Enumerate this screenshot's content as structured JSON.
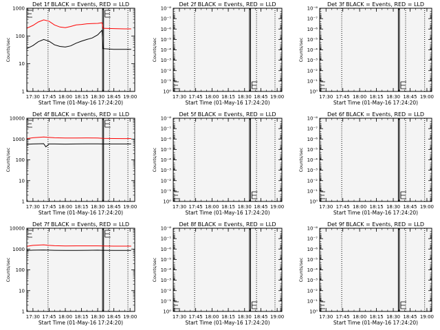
{
  "figure": {
    "background": "#ffffff",
    "foreground": "#000000",
    "panel_background": "#f4f4f4",
    "event_color": "#000000",
    "lld_color": "#ff0000"
  },
  "chart_data": [
    {
      "type": "line",
      "title": "Det 1f BLACK = Events, RED = LLD",
      "xlabel": "Start Time (01-May-16 17:24:20)",
      "ylabel": "Counts/sec",
      "x_ticks": [
        "17:30",
        "17:45",
        "18:00",
        "18:15",
        "18:30",
        "18:45",
        "19:00"
      ],
      "x_range": [
        "17:24:20",
        "19:04:20"
      ],
      "y_scale": "log",
      "y_range": [
        1,
        1000
      ],
      "y_ticks": [
        "1",
        "10",
        "100",
        "1000"
      ],
      "dotted_vlines": [
        "17:44:00",
        "18:41:00",
        "18:58:00"
      ],
      "solid_vlines": [
        "18:34:30",
        "18:35:30"
      ],
      "series": [
        {
          "color": "red",
          "x": [
            "17:24:20",
            "17:30",
            "17:35",
            "17:40",
            "17:45",
            "17:50",
            "17:55",
            "18:00",
            "18:05",
            "18:10",
            "18:15",
            "18:20",
            "18:25",
            "18:30",
            "18:34",
            "18:35",
            "18:45",
            "18:55",
            "19:01"
          ],
          "values": [
            190,
            240,
            320,
            380,
            340,
            250,
            210,
            200,
            220,
            250,
            260,
            275,
            280,
            285,
            300,
            190,
            185,
            180,
            180
          ]
        },
        {
          "color": "black",
          "x": [
            "17:24:20",
            "17:30",
            "17:35",
            "17:40",
            "17:45",
            "17:50",
            "17:55",
            "18:00",
            "18:05",
            "18:10",
            "18:15",
            "18:20",
            "18:25",
            "18:30",
            "18:34",
            "18:35",
            "18:45",
            "18:55",
            "19:01"
          ],
          "values": [
            35,
            45,
            62,
            75,
            65,
            48,
            42,
            40,
            44,
            55,
            65,
            75,
            85,
            110,
            160,
            35,
            33,
            33,
            33
          ]
        }
      ]
    },
    {
      "type": "line",
      "title": "Det 2f BLACK = Events, RED = LLD",
      "xlabel": "Start Time (01-May-16 17:24:20)",
      "ylabel": "Counts/sec",
      "x_ticks": [
        "17:30",
        "17:45",
        "18:00",
        "18:15",
        "18:30",
        "18:45",
        "19:00"
      ],
      "x_range": [
        "17:24:20",
        "19:04:20"
      ],
      "y_scale": "log",
      "y_range": [
        1,
        1e-08
      ],
      "y_ticks": [
        "10⁰",
        "10⁻¹",
        "10⁻²",
        "10⁻³",
        "10⁻⁴",
        "10⁻⁵",
        "10⁻⁶",
        "10⁻⁷",
        "10⁻⁸"
      ],
      "dotted_vlines": [
        "17:44:00",
        "18:41:00",
        "18:58:00"
      ],
      "solid_vlines": [
        "18:34:30",
        "18:35:30"
      ],
      "series": []
    },
    {
      "type": "line",
      "title": "Det 3f BLACK = Events, RED = LLD",
      "xlabel": "Start Time (01-May-16 17:24:20)",
      "ylabel": "Counts/sec",
      "x_ticks": [
        "17:30",
        "17:45",
        "18:00",
        "18:15",
        "18:30",
        "18:45",
        "19:00"
      ],
      "x_range": [
        "17:24:20",
        "19:04:20"
      ],
      "y_scale": "log",
      "y_range": [
        1,
        1e-08
      ],
      "y_ticks": [
        "10⁰",
        "10⁻¹",
        "10⁻²",
        "10⁻³",
        "10⁻⁴",
        "10⁻⁵",
        "10⁻⁶",
        "10⁻⁷",
        "10⁻⁸"
      ],
      "dotted_vlines": [
        "17:44:00",
        "18:41:00",
        "18:58:00"
      ],
      "solid_vlines": [
        "18:34:30",
        "18:35:30"
      ],
      "series": []
    },
    {
      "type": "line",
      "title": "Det 4f BLACK = Events, RED = LLD",
      "xlabel": "Start Time (01-May-16 17:24:20)",
      "ylabel": "Counts/sec",
      "x_ticks": [
        "17:30",
        "17:45",
        "18:00",
        "18:15",
        "18:30",
        "18:45",
        "19:00"
      ],
      "x_range": [
        "17:24:20",
        "19:04:20"
      ],
      "y_scale": "log",
      "y_range": [
        1,
        10000
      ],
      "y_ticks": [
        "1",
        "10",
        "100",
        "1000",
        "10000"
      ],
      "dotted_vlines": [
        "17:44:00",
        "18:41:00",
        "18:58:00"
      ],
      "solid_vlines": [
        "18:34:30",
        "18:35:30"
      ],
      "series": [
        {
          "color": "red",
          "x": [
            "17:24:20",
            "17:30",
            "17:40",
            "17:45",
            "17:50",
            "18:00",
            "18:10",
            "18:20",
            "18:30",
            "18:35",
            "18:45",
            "18:55",
            "19:01"
          ],
          "values": [
            1050,
            1150,
            1250,
            1200,
            1150,
            1120,
            1120,
            1130,
            1120,
            1080,
            1060,
            1050,
            1060
          ]
        },
        {
          "color": "black",
          "x": [
            "17:24:20",
            "17:30",
            "17:40",
            "17:42",
            "17:45",
            "17:50",
            "18:00",
            "18:10",
            "18:20",
            "18:30",
            "18:35",
            "18:45",
            "18:55",
            "19:01"
          ],
          "values": [
            560,
            580,
            600,
            420,
            580,
            580,
            570,
            580,
            590,
            590,
            580,
            580,
            580,
            580
          ]
        }
      ]
    },
    {
      "type": "line",
      "title": "Det 5f BLACK = Events, RED = LLD",
      "xlabel": "Start Time (01-May-16 17:24:20)",
      "ylabel": "Counts/sec",
      "x_ticks": [
        "17:30",
        "17:45",
        "18:00",
        "18:15",
        "18:30",
        "18:45",
        "19:00"
      ],
      "x_range": [
        "17:24:20",
        "19:04:20"
      ],
      "y_scale": "log",
      "y_range": [
        1,
        1e-08
      ],
      "y_ticks": [
        "10⁰",
        "10⁻¹",
        "10⁻²",
        "10⁻³",
        "10⁻⁴",
        "10⁻⁵",
        "10⁻⁶",
        "10⁻⁷",
        "10⁻⁸"
      ],
      "dotted_vlines": [
        "17:44:00",
        "18:41:00",
        "18:58:00"
      ],
      "solid_vlines": [
        "18:34:30",
        "18:35:30"
      ],
      "series": []
    },
    {
      "type": "line",
      "title": "Det 6f BLACK = Events, RED = LLD",
      "xlabel": "Start Time (01-May-16 17:24:20)",
      "ylabel": "Counts/sec",
      "x_ticks": [
        "17:30",
        "17:45",
        "18:00",
        "18:15",
        "18:30",
        "18:45",
        "19:00"
      ],
      "x_range": [
        "17:24:20",
        "19:04:20"
      ],
      "y_scale": "log",
      "y_range": [
        1,
        1e-08
      ],
      "y_ticks": [
        "10⁰",
        "10⁻¹",
        "10⁻²",
        "10⁻³",
        "10⁻⁴",
        "10⁻⁵",
        "10⁻⁶",
        "10⁻⁷",
        "10⁻⁸"
      ],
      "dotted_vlines": [
        "17:44:00",
        "18:41:00",
        "18:58:00"
      ],
      "solid_vlines": [
        "18:34:30",
        "18:35:30"
      ],
      "series": []
    },
    {
      "type": "line",
      "title": "Det 7f BLACK = Events, RED = LLD",
      "xlabel": "Start Time (01-May-16 17:24:20)",
      "ylabel": "Counts/sec",
      "x_ticks": [
        "17:30",
        "17:45",
        "18:00",
        "18:15",
        "18:30",
        "18:45",
        "19:00"
      ],
      "x_range": [
        "17:24:20",
        "19:04:20"
      ],
      "y_scale": "log",
      "y_range": [
        1,
        10000
      ],
      "y_ticks": [
        "1",
        "10",
        "100",
        "1000",
        "10000"
      ],
      "dotted_vlines": [
        "17:44:00",
        "18:41:00",
        "18:58:00"
      ],
      "solid_vlines": [
        "18:34:30",
        "18:35:30"
      ],
      "series": [
        {
          "color": "red",
          "x": [
            "17:24:20",
            "17:30",
            "17:40",
            "17:45",
            "17:50",
            "18:00",
            "18:10",
            "18:20",
            "18:30",
            "18:35",
            "18:45",
            "18:55",
            "19:01"
          ],
          "values": [
            1350,
            1500,
            1600,
            1500,
            1450,
            1400,
            1420,
            1430,
            1430,
            1400,
            1380,
            1380,
            1380
          ]
        },
        {
          "color": "black",
          "x": [
            "17:24:20",
            "17:30",
            "17:40",
            "17:45",
            "17:50",
            "18:00",
            "18:10",
            "18:20",
            "18:30",
            "18:35",
            "18:45",
            "18:55",
            "19:01"
          ],
          "values": [
            850,
            880,
            900,
            880,
            870,
            860,
            860,
            870,
            880,
            870,
            860,
            860,
            860
          ]
        }
      ]
    },
    {
      "type": "line",
      "title": "Det 8f BLACK = Events, RED = LLD",
      "xlabel": "Start Time (01-May-16 17:24:20)",
      "ylabel": "Counts/sec",
      "x_ticks": [
        "17:30",
        "17:45",
        "18:00",
        "18:15",
        "18:30",
        "18:45",
        "19:00"
      ],
      "x_range": [
        "17:24:20",
        "19:04:20"
      ],
      "y_scale": "log",
      "y_range": [
        1,
        1e-08
      ],
      "y_ticks": [
        "10⁰",
        "10⁻¹",
        "10⁻²",
        "10⁻³",
        "10⁻⁴",
        "10⁻⁵",
        "10⁻⁶",
        "10⁻⁷",
        "10⁻⁸"
      ],
      "dotted_vlines": [
        "17:44:00",
        "18:41:00",
        "18:58:00"
      ],
      "solid_vlines": [
        "18:34:30",
        "18:35:30"
      ],
      "series": []
    },
    {
      "type": "line",
      "title": "Det 9f BLACK = Events, RED = LLD",
      "xlabel": "Start Time (01-May-16 17:24:20)",
      "ylabel": "Counts/sec",
      "x_ticks": [
        "17:30",
        "17:45",
        "18:00",
        "18:15",
        "18:30",
        "18:45",
        "19:00"
      ],
      "x_range": [
        "17:24:20",
        "19:04:20"
      ],
      "y_scale": "log",
      "y_range": [
        1,
        1e-08
      ],
      "y_ticks": [
        "10⁰",
        "10⁻¹",
        "10⁻²",
        "10⁻³",
        "10⁻⁴",
        "10⁻⁵",
        "10⁻⁶",
        "10⁻⁷",
        "10⁻⁸"
      ],
      "dotted_vlines": [
        "17:44:00",
        "18:41:00",
        "18:58:00"
      ],
      "solid_vlines": [
        "18:34:30",
        "18:35:30"
      ],
      "series": []
    }
  ]
}
